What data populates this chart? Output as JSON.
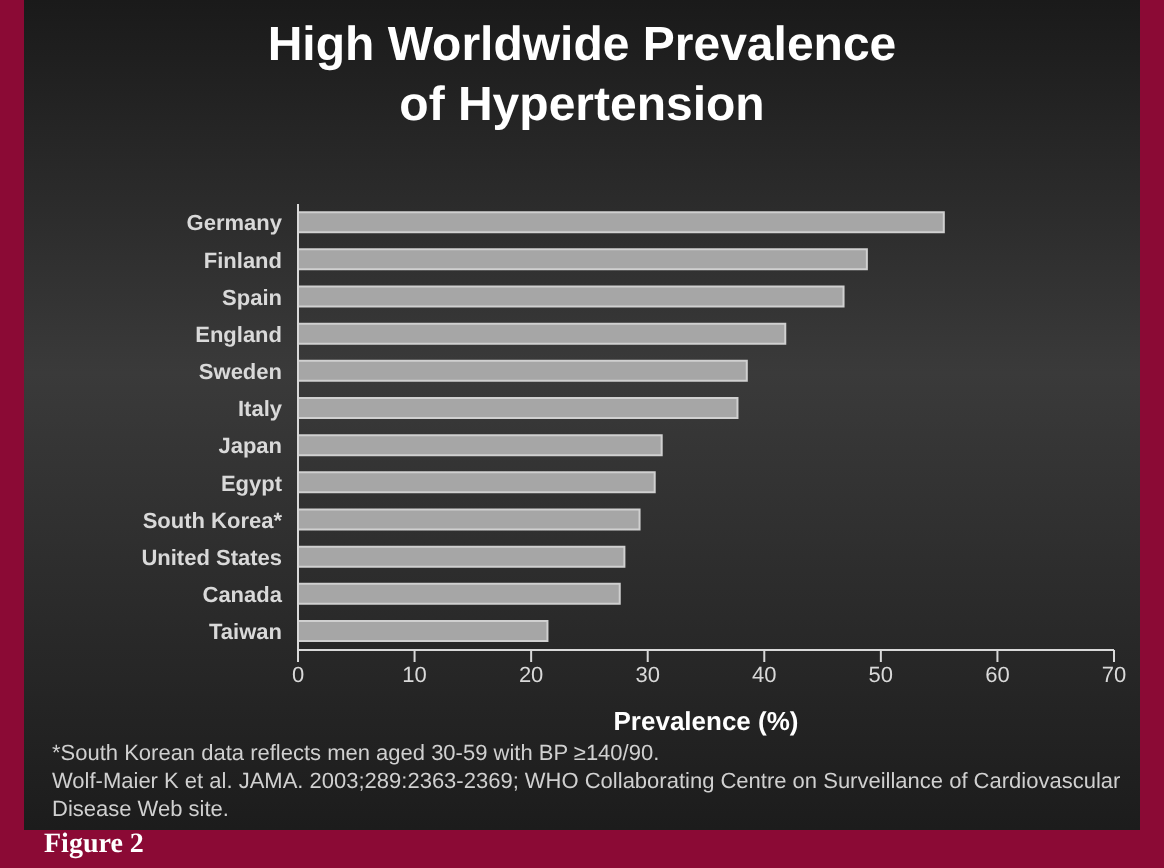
{
  "chart_data": {
    "type": "bar",
    "orientation": "horizontal",
    "title": "High Worldwide Prevalence\nof Hypertension",
    "xlabel": "Prevalence (%)",
    "categories": [
      "Germany",
      "Finland",
      "Spain",
      "England",
      "Sweden",
      "Italy",
      "Japan",
      "Egypt",
      "South Korea*",
      "United States",
      "Canada",
      "Taiwan"
    ],
    "values": [
      55.4,
      48.8,
      46.8,
      41.8,
      38.5,
      37.7,
      31.2,
      30.6,
      29.3,
      28.0,
      27.6,
      21.4
    ],
    "color": "#a6a6a6",
    "xlim": [
      0,
      70
    ],
    "xticks": [
      0,
      10,
      20,
      30,
      40,
      50,
      60,
      70
    ],
    "grid": false,
    "legend": false,
    "annotations": [
      "*South Korean data reflects men aged 30-59 with BP ≥140/90.",
      "Wolf-Maier K et al. JAMA. 2003;289:2363-2369; WHO Collaborating Centre on Surveillance of Cardiovascular Disease Web site.",
      "Figure 2"
    ]
  }
}
